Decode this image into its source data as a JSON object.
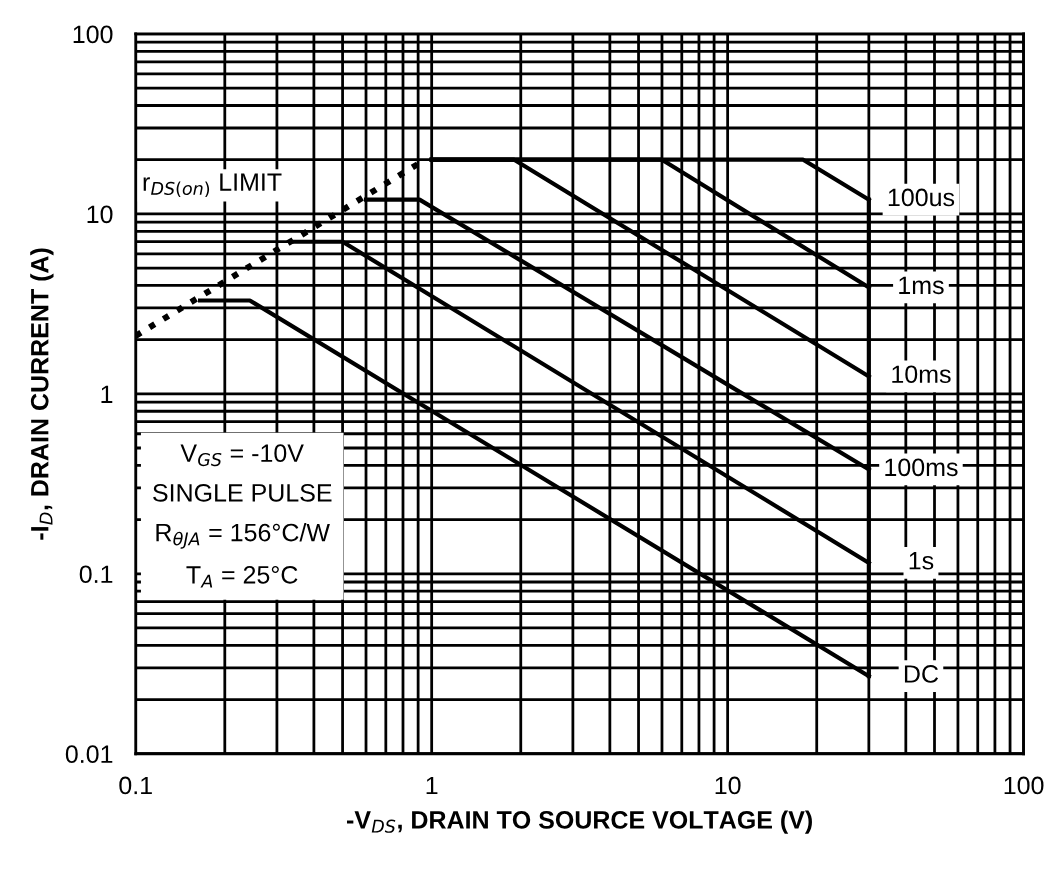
{
  "chart_data": {
    "type": "line",
    "xlabel": "-V$_{DS}$, DRAIN TO SOURCE VOLTAGE (V)",
    "ylabel": "-I$_{D}$, DRAIN CURRENT (A)",
    "log": "xy",
    "xlim": [
      0.1,
      100
    ],
    "ylim": [
      0.01,
      100
    ],
    "xticks": [
      0.1,
      1,
      10,
      100
    ],
    "yticks": [
      0.01,
      0.1,
      1,
      10,
      100
    ],
    "grid": true,
    "legend": false,
    "marker": "none",
    "series": [
      {
        "name": "r$_{DS(on)}$ LIMIT",
        "color": "#000000",
        "line_style": "dotted",
        "x": [
          0.1,
          0.95
        ],
        "values": [
          2.1,
          20
        ]
      },
      {
        "name": "100us",
        "color": "#000000",
        "line_style": "solid",
        "x": [
          1,
          18,
          30
        ],
        "values": [
          20,
          20,
          12
        ]
      },
      {
        "name": "1ms",
        "color": "#000000",
        "line_style": "solid",
        "x": [
          1,
          6,
          30
        ],
        "values": [
          20,
          20,
          3.9
        ]
      },
      {
        "name": "10ms",
        "color": "#000000",
        "line_style": "solid",
        "x": [
          1,
          1.9,
          30
        ],
        "values": [
          20,
          20,
          1.25
        ]
      },
      {
        "name": "100ms",
        "color": "#000000",
        "line_style": "solid",
        "x": [
          0.6,
          0.91,
          30
        ],
        "values": [
          12,
          12,
          0.38
        ]
      },
      {
        "name": "1s",
        "color": "#000000",
        "line_style": "solid",
        "x": [
          0.34,
          0.5,
          30
        ],
        "values": [
          7,
          7,
          0.115
        ]
      },
      {
        "name": "DC",
        "color": "#000000",
        "line_style": "solid",
        "x": [
          0.165,
          0.243,
          30
        ],
        "values": [
          3.3,
          3.3,
          0.027
        ]
      },
      {
        "color": "#000000",
        "line_style": "solid",
        "x": [
          30,
          30
        ],
        "values": [
          12,
          0.027
        ]
      }
    ],
    "annotations": [
      "V$_{GS}$ = -10V",
      "SINGLE PULSE",
      "R$_{θJA}$ = 156°C/W",
      "T$_{A}$ = 25°C"
    ]
  }
}
